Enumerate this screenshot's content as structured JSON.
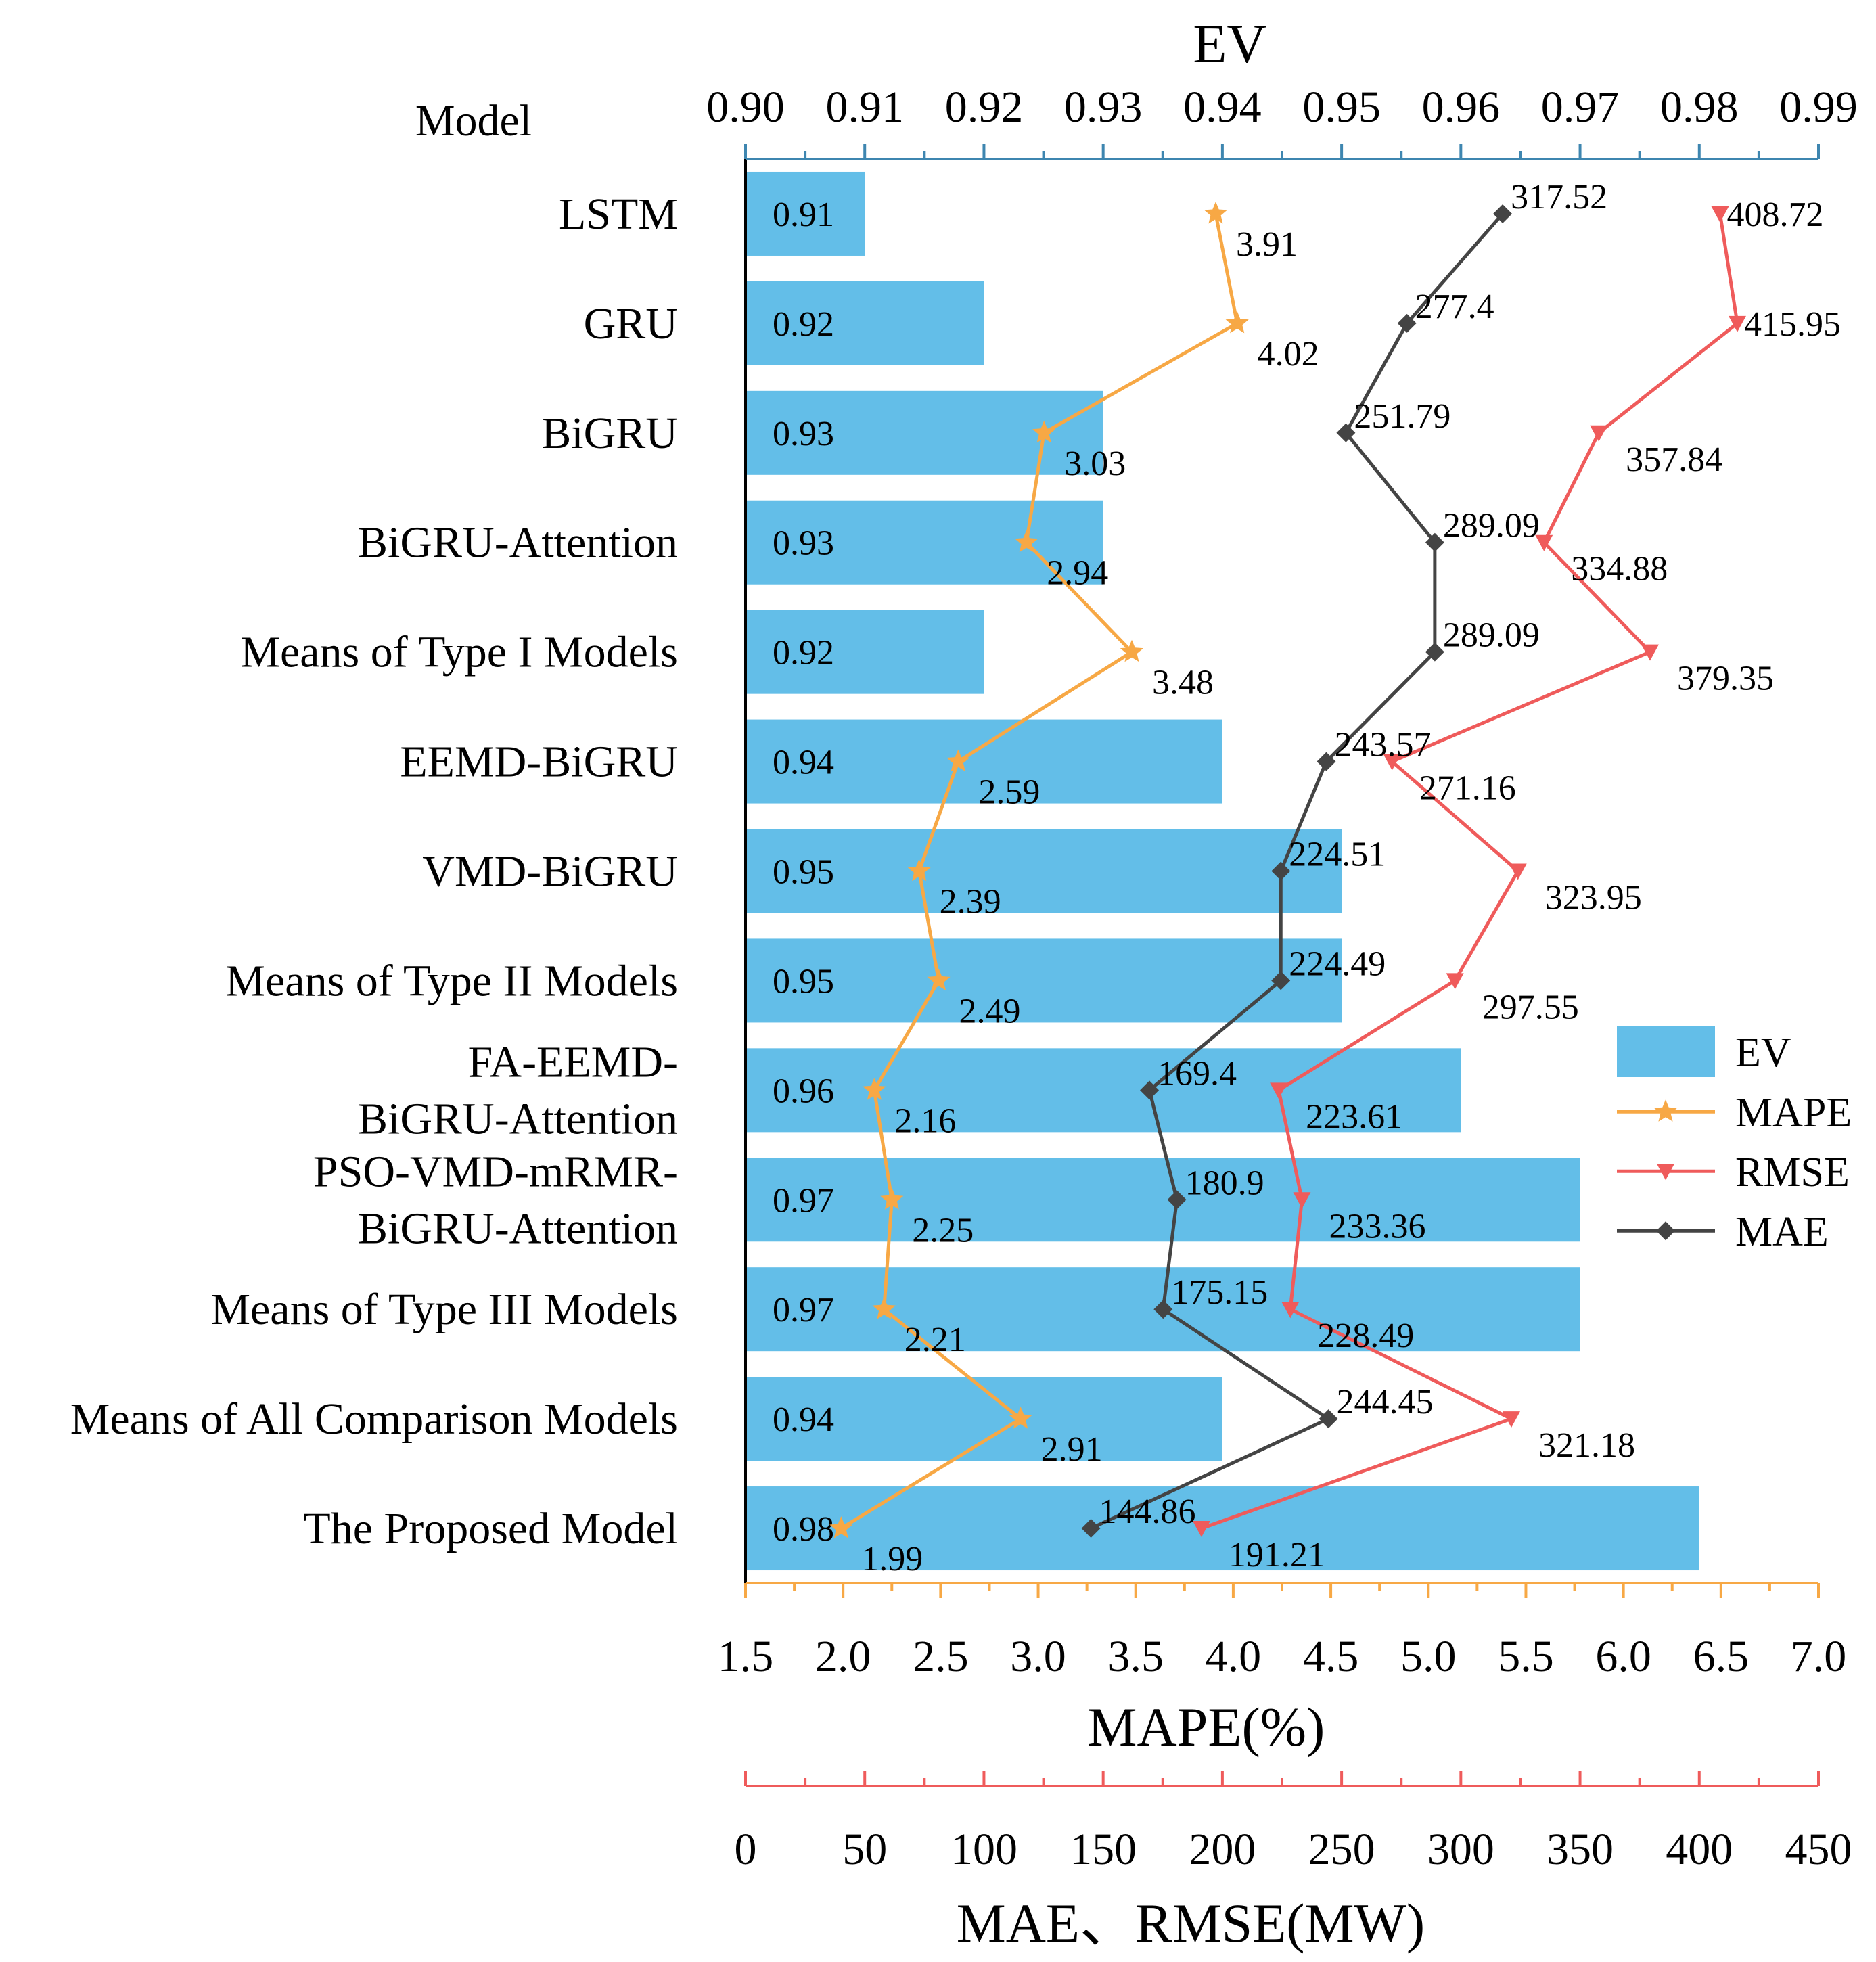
{
  "chart_data": {
    "type": "bar+line",
    "orientation": "horizontal",
    "model_axis_title": "Model",
    "categories": [
      [
        "LSTM"
      ],
      [
        "GRU"
      ],
      [
        "BiGRU"
      ],
      [
        "BiGRU-Attention"
      ],
      [
        "Means of Type I Models"
      ],
      [
        "EEMD-BiGRU"
      ],
      [
        "VMD-BiGRU"
      ],
      [
        "Means of Type II Models"
      ],
      [
        "FA-EEMD-",
        "BiGRU-Attention"
      ],
      [
        "PSO-VMD-mRMR-",
        "BiGRU-Attention"
      ],
      [
        "Means of Type III Models"
      ],
      [
        "Means of All Comparison Models"
      ],
      [
        "The Proposed  Model"
      ]
    ],
    "series": [
      {
        "name": "EV",
        "kind": "bar",
        "axis": "ev",
        "color": "#63BEE8",
        "values": [
          0.91,
          0.92,
          0.93,
          0.93,
          0.92,
          0.94,
          0.95,
          0.95,
          0.96,
          0.97,
          0.97,
          0.94,
          0.98
        ],
        "labels": [
          "0.91",
          "0.92",
          "0.93",
          "0.93",
          "0.92",
          "0.94",
          "0.95",
          "0.95",
          "0.96",
          "0.97",
          "0.97",
          "0.94",
          "0.98"
        ]
      },
      {
        "name": "MAPE",
        "kind": "line",
        "axis": "mape",
        "marker": "star",
        "color": "#F7A845",
        "values": [
          3.91,
          4.02,
          3.03,
          2.94,
          3.48,
          2.59,
          2.39,
          2.49,
          2.16,
          2.25,
          2.21,
          2.91,
          1.99
        ],
        "labels": [
          "3.91",
          "4.02",
          "3.03",
          "2.94",
          "3.48",
          "2.59",
          "2.39",
          "2.49",
          "2.16",
          "2.25",
          "2.21",
          "2.91",
          "1.99"
        ]
      },
      {
        "name": "RMSE",
        "kind": "line",
        "axis": "mw",
        "marker": "triangle-down",
        "color": "#EF5B5B",
        "values": [
          408.72,
          415.95,
          357.84,
          334.88,
          379.35,
          271.16,
          323.95,
          297.55,
          223.61,
          233.36,
          228.49,
          321.18,
          191.21
        ],
        "labels": [
          "408.72",
          "415.95",
          "357.84",
          "334.88",
          "379.35",
          "271.16",
          "323.95",
          "297.55",
          "223.61",
          "233.36",
          "228.49",
          "321.18",
          "191.21"
        ]
      },
      {
        "name": "MAE",
        "kind": "line",
        "axis": "mw",
        "marker": "diamond",
        "color": "#444444",
        "values": [
          317.52,
          277.4,
          251.79,
          289.09,
          289.09,
          243.57,
          224.51,
          224.49,
          169.4,
          180.9,
          175.15,
          244.45,
          144.86
        ],
        "labels": [
          "317.52",
          "277.4",
          "251.79",
          "289.09",
          "289.09",
          "243.57",
          "224.51",
          "224.49",
          "169.4",
          "180.9",
          "175.15",
          "244.45",
          "144.86"
        ]
      }
    ],
    "axes": {
      "ev": {
        "title": "EV",
        "position": "top",
        "color": "#3E86B0",
        "range": [
          0.9,
          0.99
        ],
        "ticks": [
          "0.90",
          "0.91",
          "0.92",
          "0.93",
          "0.94",
          "0.95",
          "0.96",
          "0.97",
          "0.98",
          "0.99"
        ]
      },
      "mape": {
        "title": "MAPE(%)",
        "position": "bottom",
        "color": "#F7A845",
        "range": [
          1.5,
          7.0
        ],
        "ticks": [
          "1.5",
          "2.0",
          "2.5",
          "3.0",
          "3.5",
          "4.0",
          "4.5",
          "5.0",
          "5.5",
          "6.0",
          "6.5",
          "7.0"
        ]
      },
      "mw": {
        "title": "MAE、RMSE(MW)",
        "position": "bottom-offset",
        "color": "#EF5B5B",
        "range": [
          0,
          450
        ],
        "ticks": [
          "0",
          "50",
          "100",
          "150",
          "200",
          "250",
          "300",
          "350",
          "400",
          "450"
        ]
      }
    },
    "legend": {
      "placement": "right-middle",
      "entries": [
        "EV",
        "MAPE",
        "RMSE",
        "MAE"
      ]
    }
  }
}
